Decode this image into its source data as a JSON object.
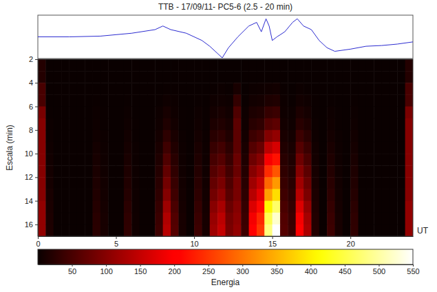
{
  "chart_data": [
    {
      "type": "line",
      "title": "TTB - 17/09/11- PC5-6 (2.5 - 20 min)",
      "x": [
        0,
        2,
        4,
        6,
        7.5,
        8,
        8.5,
        9.5,
        10.5,
        11,
        11.5,
        11.8,
        12.2,
        12.8,
        13.5,
        14,
        14.3,
        14.6,
        14.8,
        15,
        15.3,
        15.8,
        16.3,
        16.6,
        17,
        17.5,
        18,
        18.5,
        19,
        20,
        21,
        22,
        23,
        24
      ],
      "values": [
        30,
        30,
        31,
        35,
        40,
        45,
        40,
        35,
        25,
        17,
        7,
        1,
        15,
        30,
        45,
        50,
        37,
        55,
        45,
        25,
        30,
        37,
        50,
        55,
        45,
        40,
        25,
        15,
        10,
        13,
        17,
        18,
        20,
        23
      ],
      "xlim": [
        0,
        24
      ],
      "ylim": [
        0,
        60
      ],
      "color": "#2b2bd0",
      "tick_labels": false
    },
    {
      "type": "heatmap",
      "y_label": "Escala (min)",
      "x_label": "UT",
      "xlim": [
        0,
        24
      ],
      "xticks": [
        0,
        5,
        10,
        15,
        20
      ],
      "ylim": [
        2,
        17
      ],
      "yticks": [
        2,
        4,
        6,
        8,
        10,
        12,
        14,
        16
      ],
      "x_bins": [
        0,
        0.5,
        1,
        1.5,
        2,
        2.5,
        3,
        3.5,
        4,
        4.5,
        5,
        5.5,
        6,
        6.5,
        7,
        7.5,
        8,
        8.5,
        9,
        9.5,
        10,
        10.5,
        11,
        11.5,
        12,
        12.5,
        13,
        13.5,
        14,
        14.5,
        15,
        15.5,
        16,
        16.5,
        17,
        17.5,
        18,
        18.5,
        19,
        19.5,
        20,
        20.5,
        21,
        21.5,
        22,
        22.5,
        23,
        23.5,
        24
      ],
      "y_bins": [
        2,
        3,
        4,
        5,
        6,
        7,
        8,
        9,
        10,
        11,
        12,
        13,
        14,
        15,
        16,
        17
      ],
      "cells": [
        [
          20,
          0,
          0,
          0,
          0,
          0,
          0,
          0,
          0,
          0,
          0,
          0,
          0,
          0,
          0,
          0,
          0,
          0,
          0,
          0,
          0,
          0,
          0,
          0,
          0,
          0,
          0,
          0,
          0,
          0,
          0,
          0,
          0,
          0,
          0,
          0,
          0,
          0,
          0,
          0,
          0,
          0,
          0,
          0,
          0,
          0,
          0,
          20
        ],
        [
          20,
          0,
          0,
          0,
          0,
          0,
          0,
          0,
          0,
          0,
          0,
          0,
          0,
          0,
          0,
          0,
          0,
          0,
          0,
          0,
          0,
          0,
          0,
          0,
          0,
          0,
          0,
          0,
          0,
          0,
          0,
          0,
          0,
          0,
          0,
          0,
          0,
          0,
          0,
          0,
          0,
          0,
          0,
          0,
          0,
          0,
          0,
          20
        ],
        [
          50,
          0,
          0,
          0,
          0,
          0,
          0,
          0,
          0,
          0,
          0,
          0,
          0,
          0,
          0,
          0,
          1,
          1,
          0,
          0,
          0,
          0,
          1,
          2,
          1,
          11,
          0,
          2,
          3,
          5,
          6,
          1,
          0,
          2,
          1,
          0,
          0,
          0,
          0,
          0,
          0,
          0,
          0,
          0,
          0,
          0,
          0,
          50
        ],
        [
          50,
          0,
          0,
          0,
          0,
          0,
          0,
          1,
          0,
          0,
          0,
          1,
          0,
          0,
          0,
          1,
          4,
          2,
          0,
          0,
          1,
          0,
          4,
          5,
          3,
          33,
          1,
          6,
          8,
          14,
          17,
          2,
          1,
          6,
          4,
          1,
          0,
          1,
          0,
          0,
          1,
          0,
          0,
          0,
          0,
          0,
          0,
          50
        ],
        [
          90,
          1,
          0,
          0,
          0,
          0,
          0,
          2,
          1,
          0,
          0,
          2,
          0,
          0,
          0,
          3,
          10,
          4,
          1,
          0,
          3,
          1,
          8,
          11,
          6,
          55,
          3,
          14,
          18,
          34,
          39,
          4,
          3,
          14,
          9,
          1,
          0,
          3,
          1,
          0,
          2,
          0,
          0,
          0,
          0,
          0,
          0,
          90
        ],
        [
          100,
          2,
          0,
          0,
          0,
          0,
          0,
          3,
          1,
          0,
          0,
          4,
          1,
          0,
          0,
          5,
          17,
          7,
          1,
          0,
          5,
          1,
          14,
          18,
          11,
          66,
          5,
          24,
          30,
          58,
          66,
          7,
          5,
          24,
          16,
          2,
          0,
          5,
          1,
          0,
          4,
          0,
          0,
          0,
          0,
          0,
          0,
          100
        ],
        [
          100,
          3,
          0,
          0,
          0,
          0,
          0,
          5,
          2,
          0,
          0,
          6,
          1,
          0,
          0,
          8,
          28,
          12,
          2,
          0,
          8,
          2,
          24,
          30,
          18,
          66,
          8,
          40,
          50,
          96,
          110,
          12,
          8,
          40,
          26,
          4,
          0,
          8,
          2,
          0,
          6,
          0,
          0,
          0,
          0,
          0,
          0,
          100
        ],
        [
          100,
          5,
          0,
          0,
          0,
          0,
          0,
          8,
          3,
          0,
          0,
          9,
          2,
          0,
          0,
          12,
          42,
          18,
          3,
          0,
          12,
          3,
          36,
          45,
          27,
          66,
          12,
          60,
          75,
          144,
          165,
          18,
          12,
          60,
          39,
          6,
          0,
          12,
          3,
          0,
          9,
          0,
          0,
          0,
          0,
          0,
          0,
          100
        ],
        [
          100,
          6,
          0,
          0,
          0,
          0,
          0,
          10,
          4,
          0,
          0,
          12,
          2,
          0,
          0,
          16,
          56,
          24,
          4,
          0,
          16,
          4,
          48,
          60,
          36,
          77,
          16,
          80,
          100,
          192,
          220,
          24,
          16,
          80,
          52,
          8,
          0,
          16,
          4,
          0,
          12,
          0,
          0,
          0,
          0,
          0,
          0,
          100
        ],
        [
          100,
          8,
          0,
          0,
          0,
          0,
          0,
          13,
          5,
          0,
          0,
          15,
          3,
          0,
          0,
          20,
          70,
          30,
          5,
          0,
          20,
          5,
          60,
          75,
          45,
          77,
          20,
          100,
          125,
          240,
          275,
          30,
          20,
          100,
          65,
          10,
          0,
          20,
          5,
          0,
          15,
          0,
          0,
          0,
          0,
          0,
          0,
          100
        ],
        [
          100,
          9,
          0,
          0,
          0,
          0,
          0,
          15,
          6,
          0,
          0,
          18,
          3,
          0,
          0,
          24,
          84,
          36,
          6,
          0,
          24,
          6,
          72,
          90,
          54,
          88,
          24,
          120,
          150,
          288,
          330,
          36,
          24,
          120,
          78,
          12,
          0,
          24,
          6,
          0,
          18,
          0,
          0,
          0,
          0,
          0,
          0,
          100
        ],
        [
          100,
          11,
          0,
          0,
          0,
          0,
          0,
          18,
          7,
          0,
          0,
          21,
          4,
          0,
          0,
          28,
          98,
          42,
          7,
          0,
          28,
          7,
          84,
          105,
          63,
          88,
          28,
          140,
          175,
          336,
          385,
          42,
          28,
          140,
          91,
          14,
          0,
          28,
          7,
          0,
          21,
          0,
          0,
          0,
          0,
          0,
          0,
          100
        ],
        [
          110,
          13,
          0,
          0,
          0,
          0,
          0,
          21,
          9,
          0,
          0,
          26,
          4,
          0,
          0,
          34,
          119,
          51,
          9,
          0,
          34,
          9,
          102,
          128,
          77,
          99,
          34,
          170,
          213,
          408,
          468,
          51,
          34,
          170,
          111,
          17,
          0,
          34,
          9,
          0,
          26,
          0,
          0,
          0,
          0,
          0,
          0,
          110
        ],
        [
          110,
          14,
          0,
          0,
          0,
          0,
          0,
          24,
          10,
          0,
          0,
          29,
          5,
          0,
          0,
          38,
          133,
          57,
          10,
          0,
          38,
          10,
          114,
          143,
          86,
          105,
          38,
          190,
          238,
          456,
          523,
          57,
          38,
          190,
          124,
          19,
          0,
          38,
          10,
          0,
          29,
          0,
          0,
          0,
          0,
          0,
          0,
          110
        ],
        [
          110,
          15,
          0,
          0,
          0,
          0,
          0,
          25,
          10,
          0,
          0,
          30,
          5,
          0,
          0,
          40,
          140,
          60,
          10,
          0,
          40,
          10,
          120,
          150,
          90,
          110,
          40,
          200,
          250,
          480,
          550,
          60,
          40,
          200,
          130,
          20,
          0,
          40,
          10,
          0,
          30,
          0,
          0,
          0,
          0,
          0,
          0,
          110
        ]
      ],
      "colorbar": {
        "label": "Energia",
        "range": [
          0,
          550
        ],
        "ticks": [
          50,
          100,
          150,
          200,
          250,
          300,
          350,
          400,
          450,
          500,
          550
        ]
      }
    }
  ]
}
